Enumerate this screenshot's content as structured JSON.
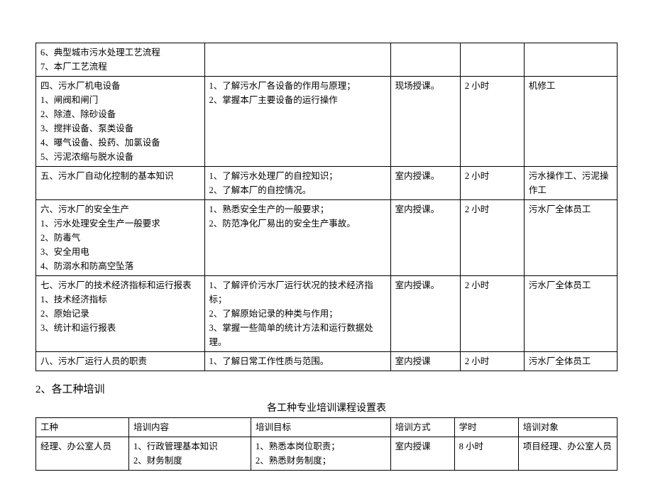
{
  "table1": {
    "columns": [
      "col-topic",
      "col-goal",
      "col-method",
      "col-hours",
      "col-target"
    ],
    "rows": [
      {
        "topic_lines": [
          "6、典型城市污水处理工艺流程",
          "7、本厂工艺流程"
        ],
        "goal_lines": [],
        "method": "",
        "hours": "",
        "target": ""
      },
      {
        "topic_lines": [
          "四、污水厂机电设备",
          "1、闸阀和闸门",
          "2、除渣、除砂设备",
          "3、搅拌设备、泵类设备",
          "4、曝气设备、投药、加氯设备",
          "5、污泥浓缩与脱水设备"
        ],
        "goal_lines": [
          "1、了解污水厂各设备的作用与原理；",
          "2、掌握本厂主要设备的运行操作"
        ],
        "method": "现场授课。",
        "hours": "2 小时",
        "target": "机修工"
      },
      {
        "topic_lines": [
          "五、污水厂自动化控制的基本知识"
        ],
        "goal_lines": [
          "1、了解污水处理厂的自控知识；",
          "2、了解本厂的自控情况。"
        ],
        "method": "室内授课。",
        "hours": "2 小时",
        "target": "污水操作工、污泥操作工"
      },
      {
        "topic_lines": [
          "六、污水厂的安全生产",
          "1、污水处理安全生产一般要求",
          "2、防毒气",
          "3、安全用电",
          "4、防溺水和防高空坠落"
        ],
        "goal_lines": [
          "1、熟悉安全生产的一般要求；",
          "2、防范净化厂易出的安全生产事故。"
        ],
        "method": "室内授课。",
        "hours": "2 小时",
        "target": "污水厂全体员工"
      },
      {
        "topic_lines": [
          "七、污水厂的技术经济指标和运行报表",
          "1、技术经济指标",
          "2、原始记录",
          "3、统计和运行报表"
        ],
        "goal_lines": [
          "1、了解评价污水厂运行状况的技术经济指标；",
          "2、了解原始记录的种类与作用；",
          "3、掌握一些简单的统计方法和运行数据处理。"
        ],
        "method": "室内授课。",
        "hours": "2 小时",
        "target": "污水厂全体员工"
      },
      {
        "topic_lines": [
          "八、污水厂运行人员的职责"
        ],
        "goal_lines": [
          "1、了解日常工作性质与范围。"
        ],
        "method": "室内授课",
        "hours": "2 小时",
        "target": "污水厂全体员工"
      }
    ]
  },
  "section2_heading": "2、各工种培训",
  "table2_title": "各工种专业培训课程设置表",
  "table2": {
    "headers": [
      "工种",
      "培训内容",
      "培训目标",
      "培训方式",
      "学时",
      "培训对象"
    ],
    "rows": [
      {
        "c0_lines": [
          "经理、办公室人员"
        ],
        "c1_lines": [
          "1、行政管理基本知识",
          "2、财务制度"
        ],
        "c2_lines": [
          "1、熟悉本岗位职责；",
          "2、熟悉财务制度；"
        ],
        "c3": "室内授课",
        "c4": "8 小时",
        "c5": "项目经理、办公室人员"
      }
    ],
    "col_widths": [
      "16%",
      "21%",
      "24%",
      "11%",
      "11%",
      "17%"
    ]
  },
  "colors": {
    "border": "#000000",
    "text": "#000000",
    "background": "#ffffff"
  }
}
